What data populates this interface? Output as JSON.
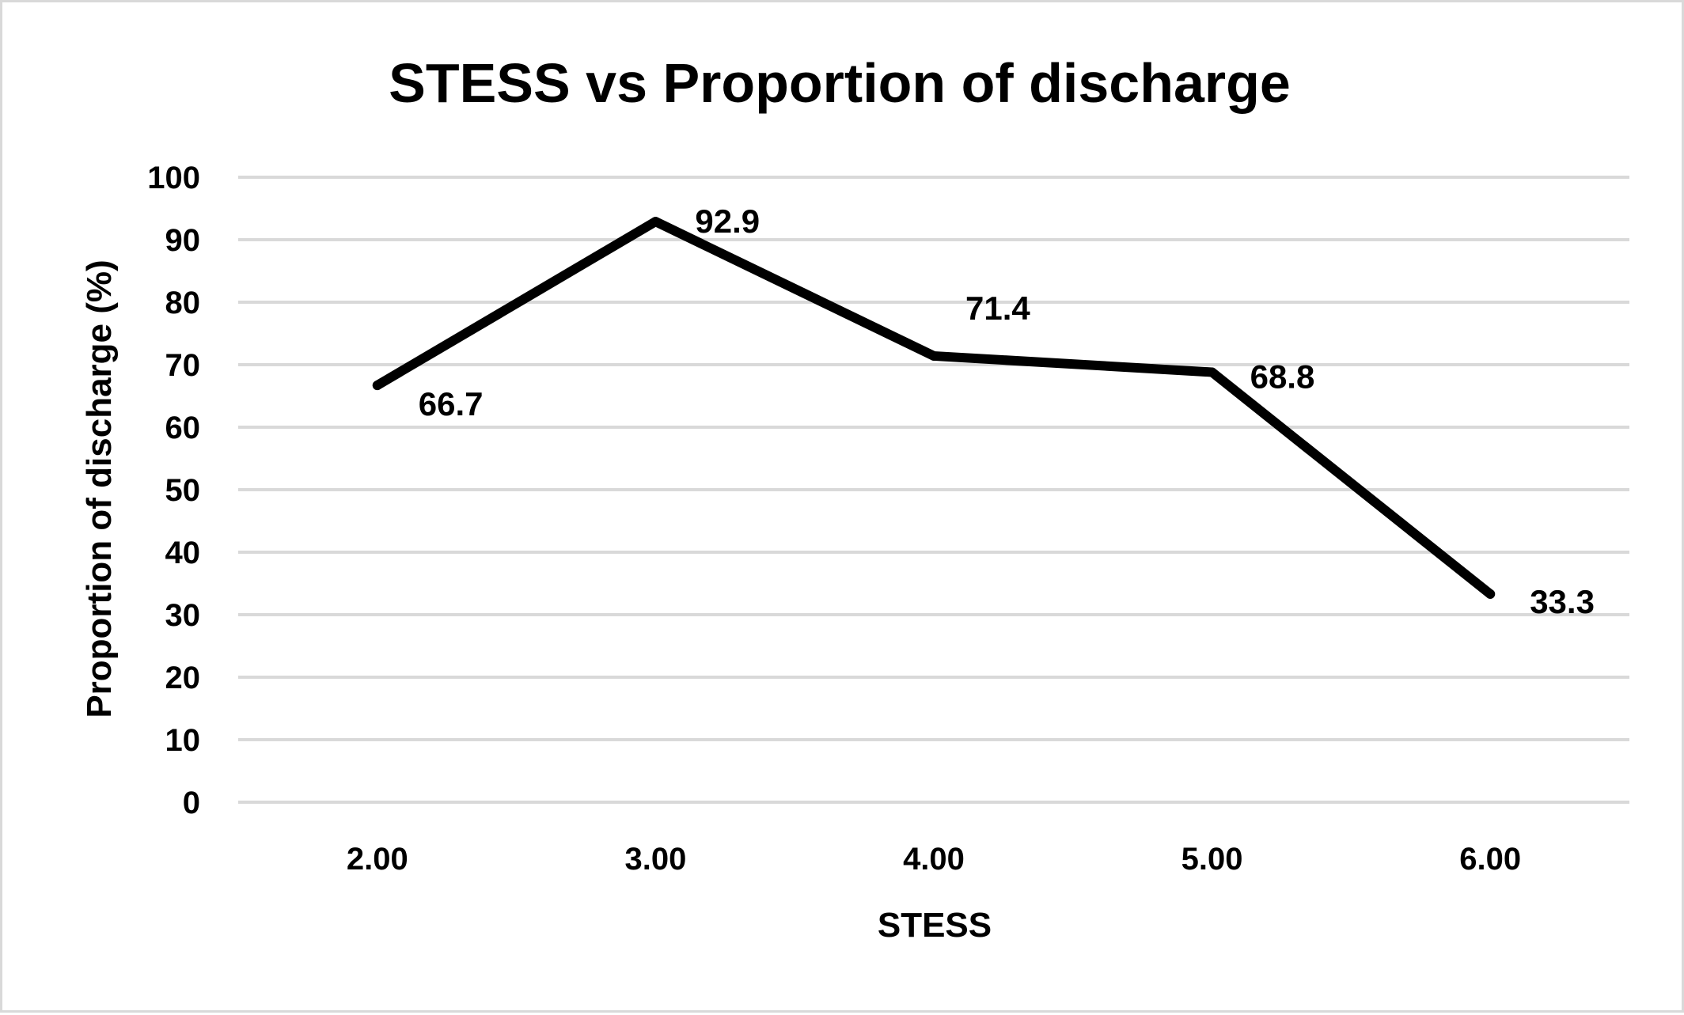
{
  "chart_data": {
    "type": "line",
    "title": "STESS vs Proportion of discharge",
    "xlabel": "STESS",
    "ylabel": "Proportion of discharge (%)",
    "categories": [
      "2.00",
      "3.00",
      "4.00",
      "5.00",
      "6.00"
    ],
    "series": [
      {
        "values": [
          66.7,
          92.9,
          71.4,
          68.8,
          33.3
        ],
        "data_labels": [
          "66.7",
          "92.9",
          "71.4",
          "68.8",
          "33.3"
        ],
        "color": "#000000"
      }
    ],
    "ylim": [
      0,
      100
    ],
    "yticks": [
      "0",
      "10",
      "20",
      "30",
      "40",
      "50",
      "60",
      "70",
      "80",
      "90",
      "100"
    ],
    "grid": true,
    "legend": "none",
    "gridline_color": "#d9d9d9"
  }
}
